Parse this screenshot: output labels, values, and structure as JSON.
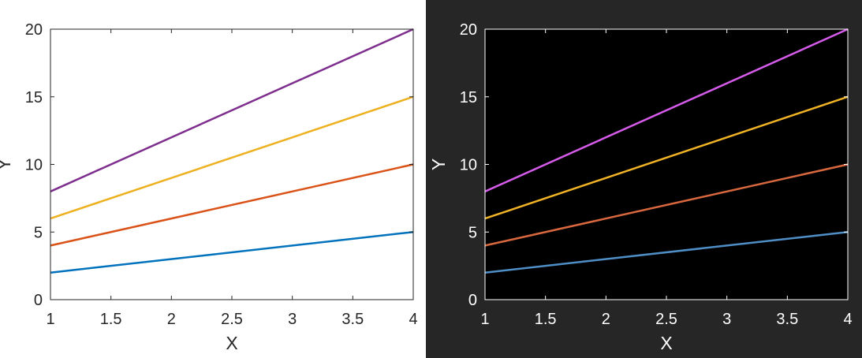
{
  "chart_data": [
    {
      "type": "line",
      "theme": "light",
      "title": "",
      "xlabel": "X",
      "ylabel": "Y",
      "xlim": [
        1,
        4
      ],
      "ylim": [
        0,
        20
      ],
      "xticks": [
        1,
        1.5,
        2,
        2.5,
        3,
        3.5,
        4
      ],
      "xtick_labels": [
        "1",
        "1.5",
        "2",
        "2.5",
        "3",
        "3.5",
        "4"
      ],
      "yticks": [
        0,
        5,
        10,
        15,
        20
      ],
      "ytick_labels": [
        "0",
        "5",
        "10",
        "15",
        "20"
      ],
      "grid": false,
      "legend": "none",
      "colors": {
        "background": "#ffffff",
        "axes_bg": "#ffffff",
        "axis": "#262626",
        "text": "#262626"
      },
      "x": [
        1,
        4
      ],
      "series": [
        {
          "values": [
            2,
            5
          ],
          "color": "#0072BD"
        },
        {
          "values": [
            4,
            10
          ],
          "color": "#D95319"
        },
        {
          "values": [
            6,
            15
          ],
          "color": "#EDB120"
        },
        {
          "values": [
            8,
            20
          ],
          "color": "#7E2F8E"
        }
      ]
    },
    {
      "type": "line",
      "theme": "dark",
      "title": "",
      "xlabel": "X",
      "ylabel": "Y",
      "xlim": [
        1,
        4
      ],
      "ylim": [
        0,
        20
      ],
      "xticks": [
        1,
        1.5,
        2,
        2.5,
        3,
        3.5,
        4
      ],
      "xtick_labels": [
        "1",
        "1.5",
        "2",
        "2.5",
        "3",
        "3.5",
        "4"
      ],
      "yticks": [
        0,
        5,
        10,
        15,
        20
      ],
      "ytick_labels": [
        "0",
        "5",
        "10",
        "15",
        "20"
      ],
      "grid": false,
      "legend": "none",
      "colors": {
        "background": "#262626",
        "axes_bg": "#000000",
        "axis": "#ffffff",
        "text": "#ffffff"
      },
      "x": [
        1,
        4
      ],
      "series": [
        {
          "values": [
            2,
            5
          ],
          "color": "#4F8FC7"
        },
        {
          "values": [
            4,
            10
          ],
          "color": "#D9683F"
        },
        {
          "values": [
            6,
            15
          ],
          "color": "#F0B326"
        },
        {
          "values": [
            8,
            20
          ],
          "color": "#D65BEB"
        }
      ]
    }
  ]
}
